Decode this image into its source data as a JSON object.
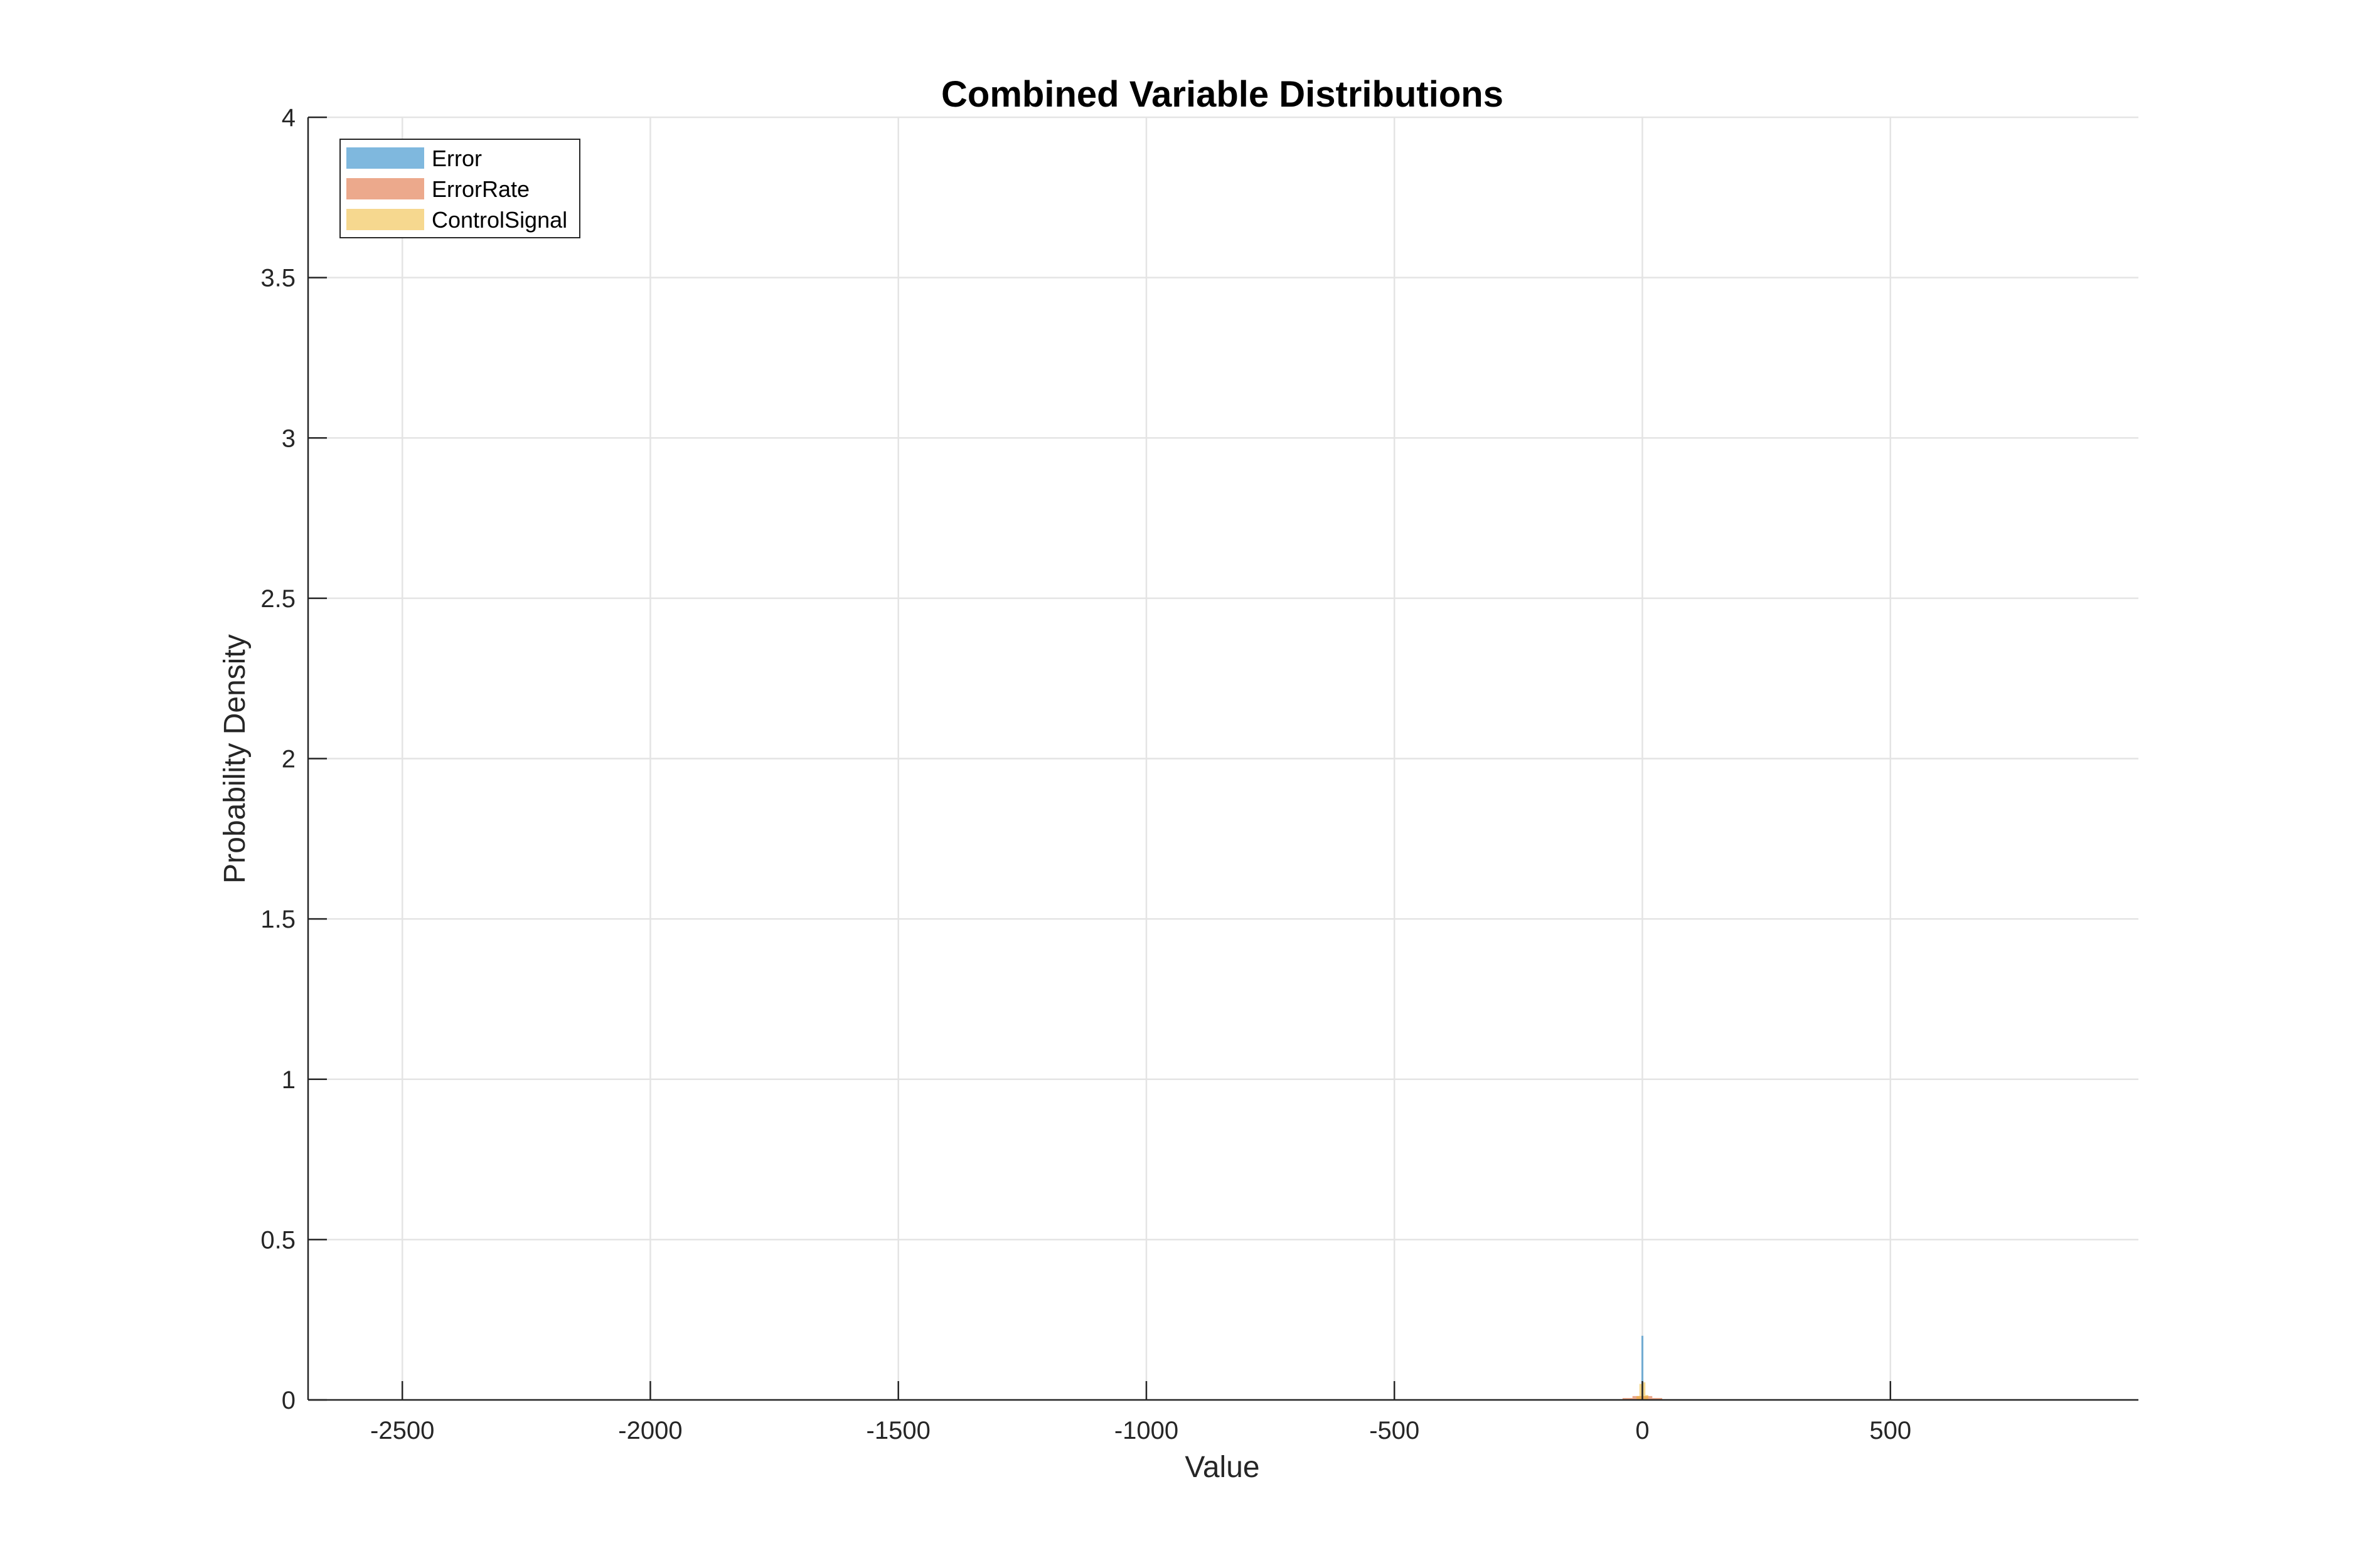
{
  "chart_data": {
    "type": "bar",
    "title": "Combined Variable Distributions",
    "xlabel": "Value",
    "ylabel": "Probability Density",
    "xlim": [
      -2690,
      1000
    ],
    "ylim": [
      0,
      4
    ],
    "xticks": [
      -2500,
      -2000,
      -1500,
      -1000,
      -500,
      0,
      500
    ],
    "xtick_labels": [
      "-2500",
      "-2000",
      "-1500",
      "-1000",
      "-500",
      "0",
      "500"
    ],
    "yticks": [
      0,
      0.5,
      1,
      1.5,
      2,
      2.5,
      3,
      3.5,
      4
    ],
    "ytick_labels": [
      "0",
      "0.5",
      "1",
      "1.5",
      "2",
      "2.5",
      "3",
      "3.5",
      "4"
    ],
    "grid": true,
    "legend_position": "top-left",
    "series": [
      {
        "name": "Error",
        "color": "#0072BD",
        "bins": [
          {
            "x0": -2,
            "x1": 2,
            "density": 0.2
          }
        ]
      },
      {
        "name": "ErrorRate",
        "color": "#D95319",
        "bins": [
          {
            "x0": -40,
            "x1": -20,
            "density": 0.006
          },
          {
            "x0": -20,
            "x1": 0,
            "density": 0.012
          },
          {
            "x0": 0,
            "x1": 20,
            "density": 0.012
          },
          {
            "x0": 20,
            "x1": 40,
            "density": 0.006
          }
        ]
      },
      {
        "name": "ControlSignal",
        "color": "#EDB120",
        "bins": [
          {
            "x0": -12,
            "x1": -6,
            "density": 0.012
          },
          {
            "x0": -6,
            "x1": 0,
            "density": 0.05
          },
          {
            "x0": 0,
            "x1": 6,
            "density": 0.055
          },
          {
            "x0": 6,
            "x1": 12,
            "density": 0.015
          }
        ]
      }
    ]
  }
}
